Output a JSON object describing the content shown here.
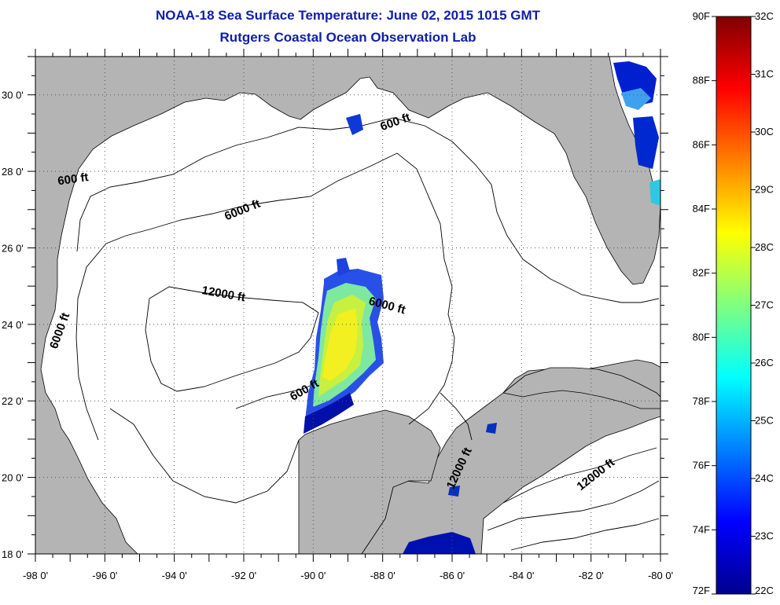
{
  "header": {
    "title": "NOAA-18 Sea Surface Temperature:  June 02, 2015 1015 GMT",
    "subtitle": "Rutgers Coastal Ocean Observation Lab"
  },
  "map": {
    "lon_range": [
      -98,
      -80
    ],
    "lat_range": [
      18,
      31
    ],
    "lon_labels": [
      "-98 0'",
      "-96 0'",
      "-94 0'",
      "-92 0'",
      "-90 0'",
      "-88 0'",
      "-86 0'",
      "-84 0'",
      "-82 0'",
      "-80 0'"
    ],
    "lat_labels": [
      "18 0'",
      "20 0'",
      "22 0'",
      "24 0'",
      "26 0'",
      "28 0'",
      "30 0'"
    ],
    "grid": "dotted",
    "contour_labels": [
      {
        "text": "600 ft",
        "lon": -96.9,
        "lat": 27.7,
        "angle": -8
      },
      {
        "text": "600 ft",
        "lon": -87.6,
        "lat": 29.2,
        "angle": -20
      },
      {
        "text": "6000 ft",
        "lon": -92.0,
        "lat": 26.9,
        "angle": -22
      },
      {
        "text": "6000 ft",
        "lon": -97.2,
        "lat": 23.8,
        "angle": -70
      },
      {
        "text": "12000 ft",
        "lon": -92.6,
        "lat": 24.7,
        "angle": 10
      },
      {
        "text": "6000 ft",
        "lon": -87.9,
        "lat": 24.4,
        "angle": 15
      },
      {
        "text": "600 ft",
        "lon": -90.2,
        "lat": 22.2,
        "angle": -30
      },
      {
        "text": "12000 ft",
        "lon": -85.7,
        "lat": 20.2,
        "angle": -65
      },
      {
        "text": "12000 ft",
        "lon": -81.8,
        "lat": 20.0,
        "angle": -38
      }
    ],
    "colors": {
      "land": "#b4b4b4",
      "water": "#ffffff",
      "title_text": "#1020a8"
    }
  },
  "colorbar": {
    "f_labels": [
      "90F",
      "88F",
      "86F",
      "84F",
      "82F",
      "80F",
      "78F",
      "76F",
      "74F",
      "72F"
    ],
    "c_labels": [
      "32C",
      "31C",
      "30C",
      "29C",
      "28C",
      "27C",
      "26C",
      "25C",
      "24C",
      "23C",
      "22C"
    ],
    "colormap": "jet"
  }
}
